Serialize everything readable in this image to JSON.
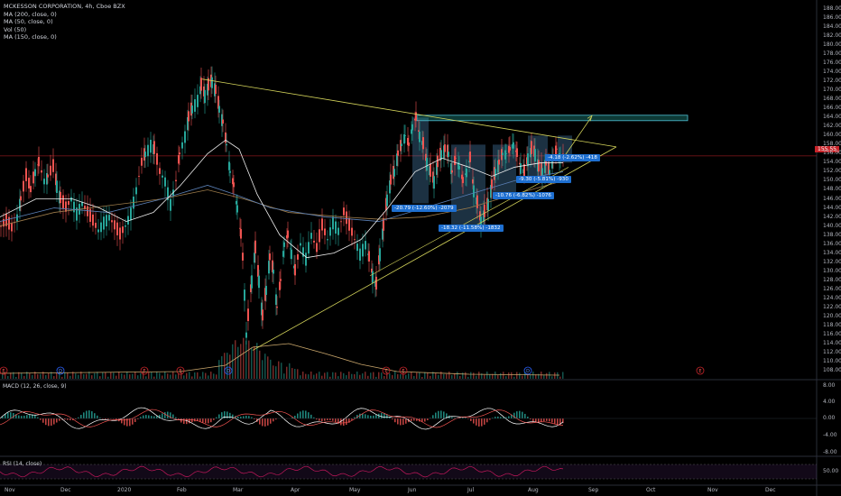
{
  "legend": {
    "title": "MCKESSON CORPORATION, 4h, Cboe BZX",
    "indicators": [
      "MA (200, close, 0)",
      "MA (50, close, 0)",
      "Vol (50)",
      "MA (150, close, 0)"
    ]
  },
  "panes": {
    "macd_label": "MACD (12, 26, close, 9)",
    "rsi_label": "RSI (14, close)"
  },
  "last_price": "155.55",
  "chart_data": {
    "type": "candlestick",
    "symbol": "MCK",
    "timeframe": "4h",
    "x_labels": [
      "Nov",
      "Dec",
      "2020",
      "Feb",
      "Mar",
      "Apr",
      "May",
      "Jun",
      "Jul",
      "Aug",
      "Sep",
      "Oct",
      "Nov",
      "Dec"
    ],
    "price_axis": [
      "188.00",
      "186.00",
      "184.00",
      "182.00",
      "180.00",
      "178.00",
      "176.00",
      "174.00",
      "172.00",
      "170.00",
      "168.00",
      "166.00",
      "164.00",
      "162.00",
      "160.00",
      "158.00",
      "156.00",
      "154.00",
      "152.00",
      "150.00",
      "148.00",
      "146.00",
      "144.00",
      "142.00",
      "140.00",
      "138.00",
      "136.00",
      "134.00",
      "132.00",
      "130.00",
      "128.00",
      "126.00",
      "124.00",
      "122.00",
      "120.00",
      "118.00",
      "116.00",
      "114.00",
      "112.00",
      "110.00",
      "108.00"
    ],
    "macd_axis": [
      "8.00",
      "4.00",
      "0.00",
      "-4.00",
      "-8.00"
    ],
    "rsi_axis": [
      "50.00"
    ],
    "ylim": [
      106,
      189
    ],
    "price_path": [
      [
        0,
        140
      ],
      [
        6,
        141
      ],
      [
        12,
        139.5
      ],
      [
        18,
        142
      ],
      [
        22,
        146
      ],
      [
        28,
        151
      ],
      [
        33,
        148
      ],
      [
        38,
        152
      ],
      [
        42,
        154
      ],
      [
        48,
        150
      ],
      [
        52,
        151
      ],
      [
        58,
        153
      ],
      [
        62,
        149
      ],
      [
        66,
        146
      ],
      [
        72,
        144
      ],
      [
        78,
        146
      ],
      [
        84,
        143
      ],
      [
        90,
        145
      ],
      [
        96,
        143
      ],
      [
        102,
        141
      ],
      [
        108,
        139
      ],
      [
        114,
        141
      ],
      [
        120,
        142
      ],
      [
        126,
        140
      ],
      [
        132,
        138
      ],
      [
        138,
        140
      ],
      [
        144,
        143
      ],
      [
        150,
        148
      ],
      [
        156,
        154
      ],
      [
        160,
        156
      ],
      [
        166,
        158
      ],
      [
        170,
        157
      ],
      [
        176,
        152
      ],
      [
        182,
        150
      ],
      [
        188,
        145
      ],
      [
        194,
        150
      ],
      [
        198,
        156
      ],
      [
        204,
        160
      ],
      [
        208,
        164
      ],
      [
        212,
        166
      ],
      [
        218,
        168
      ],
      [
        222,
        171
      ],
      [
        226,
        169
      ],
      [
        230,
        171
      ],
      [
        234,
        172
      ],
      [
        238,
        170
      ],
      [
        242,
        166
      ],
      [
        246,
        163
      ],
      [
        250,
        158
      ],
      [
        254,
        152
      ],
      [
        258,
        149
      ],
      [
        262,
        144
      ],
      [
        266,
        138
      ],
      [
        268,
        133
      ],
      [
        270,
        125
      ],
      [
        272,
        116
      ],
      [
        274,
        120
      ],
      [
        278,
        128
      ],
      [
        282,
        135
      ],
      [
        286,
        128
      ],
      [
        290,
        120
      ],
      [
        294,
        126
      ],
      [
        298,
        133
      ],
      [
        302,
        130
      ],
      [
        306,
        122
      ],
      [
        310,
        128
      ],
      [
        314,
        136
      ],
      [
        318,
        138
      ],
      [
        322,
        134
      ],
      [
        326,
        130
      ],
      [
        332,
        136
      ],
      [
        338,
        133
      ],
      [
        344,
        138
      ],
      [
        350,
        135
      ],
      [
        356,
        140
      ],
      [
        362,
        137
      ],
      [
        368,
        141
      ],
      [
        374,
        139
      ],
      [
        380,
        143
      ],
      [
        386,
        140
      ],
      [
        392,
        137
      ],
      [
        398,
        134
      ],
      [
        404,
        136
      ],
      [
        408,
        133
      ],
      [
        412,
        129
      ],
      [
        416,
        127
      ],
      [
        420,
        134
      ],
      [
        424,
        140
      ],
      [
        428,
        146
      ],
      [
        432,
        150
      ],
      [
        436,
        152
      ],
      [
        440,
        156
      ],
      [
        444,
        158
      ],
      [
        448,
        160
      ],
      [
        452,
        158
      ],
      [
        456,
        162
      ],
      [
        460,
        164
      ],
      [
        464,
        160
      ],
      [
        468,
        158
      ],
      [
        472,
        154
      ],
      [
        476,
        152
      ],
      [
        480,
        150
      ],
      [
        484,
        154
      ],
      [
        488,
        156
      ],
      [
        492,
        157
      ],
      [
        496,
        156
      ],
      [
        500,
        152
      ],
      [
        504,
        155
      ],
      [
        508,
        153
      ],
      [
        512,
        150
      ],
      [
        516,
        152
      ],
      [
        520,
        155
      ],
      [
        524,
        148
      ],
      [
        528,
        145
      ],
      [
        532,
        141
      ],
      [
        536,
        143
      ],
      [
        540,
        145
      ],
      [
        544,
        149
      ],
      [
        548,
        152
      ],
      [
        552,
        154
      ],
      [
        556,
        156
      ],
      [
        560,
        156
      ],
      [
        564,
        157
      ],
      [
        568,
        158
      ],
      [
        572,
        156
      ],
      [
        576,
        153
      ],
      [
        580,
        152
      ],
      [
        584,
        155
      ],
      [
        588,
        157
      ],
      [
        592,
        156
      ],
      [
        596,
        153
      ],
      [
        600,
        152
      ],
      [
        604,
        154
      ],
      [
        608,
        152
      ],
      [
        612,
        155
      ],
      [
        616,
        157
      ],
      [
        620,
        155
      ],
      [
        624,
        155.5
      ]
    ],
    "volume_start_x": 0,
    "annotations": [
      {
        "text": "-20.79 (-12.60%) -2079"
      },
      {
        "text": "-18.32 (-11.58%) -1832"
      },
      {
        "text": "-10.76 (-6.82%) -1076"
      },
      {
        "text": "-9.30 (-5.81%) -930"
      },
      {
        "text": "-4.18 (-2.62%) -418"
      }
    ],
    "earnings_markers": [
      "E",
      "D",
      "E",
      "D",
      "E",
      "E",
      "D",
      "E",
      "E"
    ],
    "colors": {
      "up": "#26a69a",
      "down": "#ef5350",
      "trend": "#d4d45a",
      "ma": "#f0f0f0",
      "zone": "#4fc3d7",
      "macd": "#ffffff",
      "signal": "#ef5350",
      "rsi": "#c2185b",
      "annotation": "#1e6fd0"
    }
  }
}
